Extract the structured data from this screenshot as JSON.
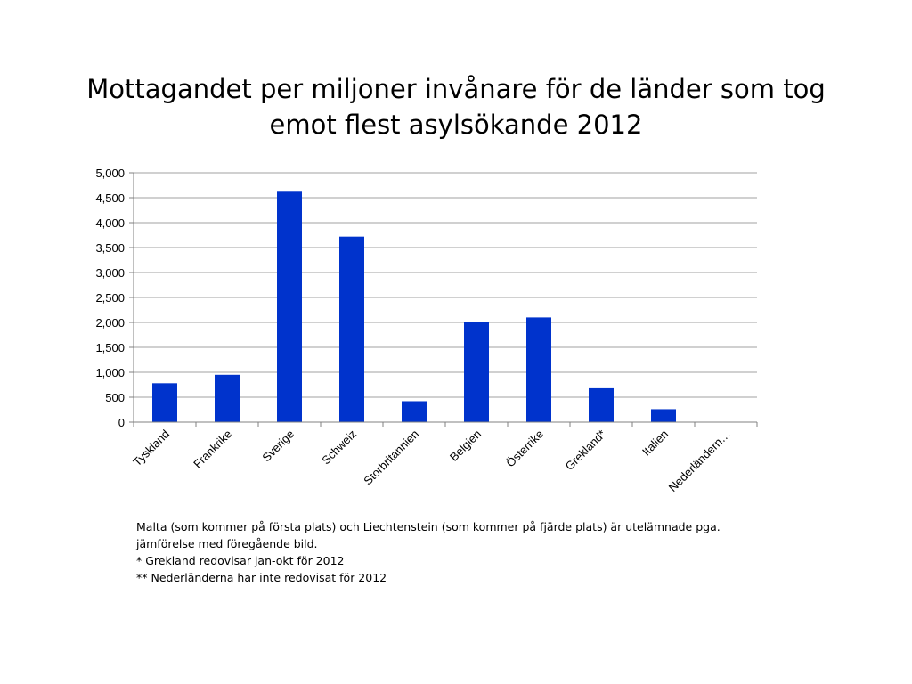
{
  "slide": {
    "title_line1": "Mottagandet per miljoner invånare för de länder som tog",
    "title_line2": "emot flest asylsökande 2012",
    "footnotes": [
      "Malta (som kommer på första plats) och Liechtenstein (som kommer på fjärde plats) är utelämnade pga.",
      "jämförelse med föregående bild.",
      "* Grekland redovisar jan-okt för 2012",
      "** Nederländerna har inte redovisat för 2012"
    ]
  },
  "chart_data": {
    "type": "bar",
    "title": "Mottagandet per miljoner invånare för de länder som tog emot flest asylsökande 2012",
    "categories": [
      "Tyskland",
      "Frankrike",
      "Sverige",
      "Schweiz",
      "Storbritannien",
      "Belgien",
      "Österrike",
      "Grekland*",
      "Italien",
      "Nederländern…"
    ],
    "values": [
      780,
      950,
      4620,
      3720,
      420,
      2000,
      2100,
      680,
      260,
      0
    ],
    "ylim": [
      0,
      5000
    ],
    "yticks": [
      "0",
      "500",
      "1,000",
      "1,500",
      "2,000",
      "2,500",
      "3,000",
      "3,500",
      "4,000",
      "4,500",
      "5,000"
    ],
    "ytick_values": [
      0,
      500,
      1000,
      1500,
      2000,
      2500,
      3000,
      3500,
      4000,
      4500,
      5000
    ],
    "bar_color": "#0033cc",
    "grid_color": "#a0a0a0",
    "grid": true,
    "legend": false
  }
}
